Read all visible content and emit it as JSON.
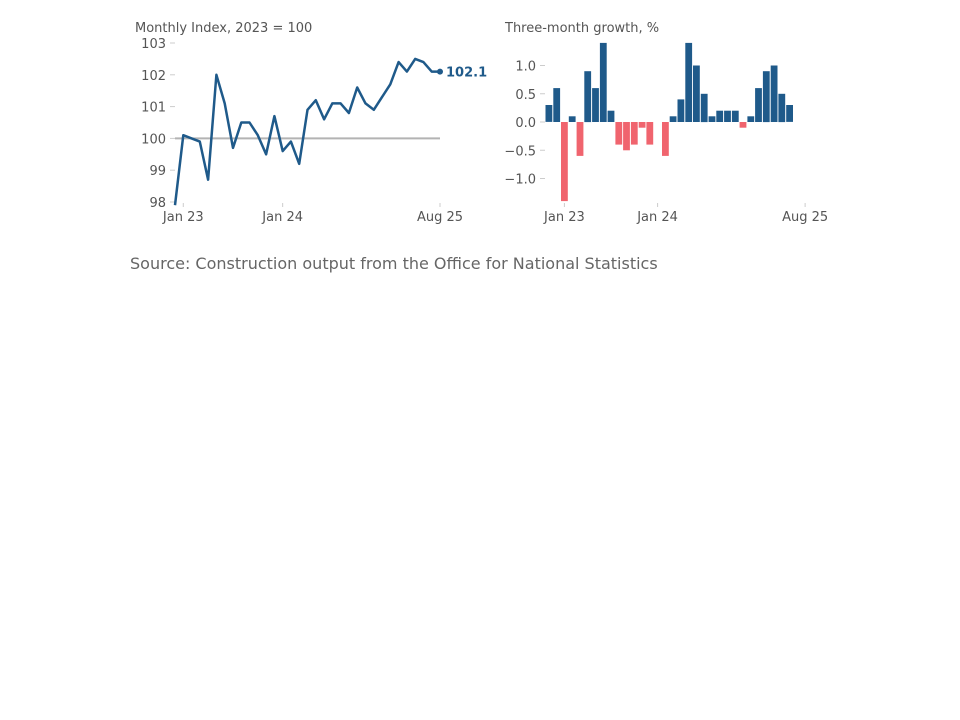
{
  "colors": {
    "line": "#1f5a8a",
    "positive": "#1f5a8a",
    "negative": "#f0646e",
    "baseline": "#b3b3b3",
    "text": "#555555"
  },
  "source": "Source: Construction output from the Office for National Statistics",
  "chart_data": [
    {
      "type": "line",
      "title": "Monthly Index, 2023 = 100",
      "xlabel": "",
      "ylabel": "",
      "ylim": [
        98,
        103
      ],
      "yticks": [
        "98",
        "99",
        "100",
        "101",
        "102",
        "103"
      ],
      "xticks": [
        "Jan 23",
        "Jan 24",
        "Aug 25"
      ],
      "baseline": 100,
      "end_label": "102.1",
      "x": [
        "Dec 22",
        "Jan 23",
        "Feb 23",
        "Mar 23",
        "Apr 23",
        "May 23",
        "Jun 23",
        "Jul 23",
        "Aug 23",
        "Sep 23",
        "Oct 23",
        "Nov 23",
        "Dec 23",
        "Jan 24",
        "Feb 24",
        "Mar 24",
        "Apr 24",
        "May 24",
        "Jun 24",
        "Jul 24",
        "Aug 24",
        "Sep 24",
        "Oct 24",
        "Nov 24",
        "Dec 24",
        "Jan 25",
        "Feb 25",
        "Mar 25",
        "Apr 25",
        "May 25",
        "Jun 25",
        "Jul 25",
        "Aug 25"
      ],
      "values": [
        97.9,
        100.1,
        100.0,
        99.9,
        98.7,
        102.0,
        101.1,
        99.7,
        100.5,
        100.5,
        100.1,
        99.5,
        100.7,
        99.6,
        99.9,
        99.2,
        100.9,
        101.2,
        100.6,
        101.1,
        101.1,
        100.8,
        101.6,
        101.1,
        100.9,
        101.3,
        101.7,
        102.4,
        102.1,
        102.5,
        102.4,
        102.1,
        102.1
      ]
    },
    {
      "type": "bar",
      "title": "Three-month growth, %",
      "xlabel": "",
      "ylabel": "",
      "ylim": [
        -1.4,
        1.4
      ],
      "yticks": [
        "−1.0",
        "−0.5",
        "0.0",
        "0.5",
        "1.0"
      ],
      "xticks": [
        "Jan 23",
        "Jan 24",
        "Aug 25"
      ],
      "categories": [
        "Nov 22",
        "Dec 22",
        "Jan 23",
        "Feb 23",
        "Mar 23",
        "Apr 23",
        "May 23",
        "Jun 23",
        "Jul 23",
        "Aug 23",
        "Sep 23",
        "Oct 23",
        "Nov 23",
        "Dec 23",
        "Jan 24",
        "Feb 24",
        "Mar 24",
        "Apr 24",
        "May 24",
        "Jun 24",
        "Jul 24",
        "Aug 24",
        "Sep 24",
        "Oct 24",
        "Nov 24",
        "Dec 24",
        "Jan 25",
        "Feb 25",
        "Mar 25",
        "Apr 25",
        "May 25",
        "Jun 25",
        "Jul 25",
        "Aug 25"
      ],
      "values": [
        0.3,
        0.6,
        -1.4,
        0.1,
        -0.6,
        0.9,
        0.6,
        1.4,
        0.2,
        -0.4,
        -0.5,
        -0.4,
        -0.1,
        -0.4,
        0.0,
        -0.6,
        0.1,
        0.4,
        1.4,
        1.0,
        0.5,
        0.1,
        0.2,
        0.2,
        0.2,
        -0.1,
        0.1,
        0.6,
        0.9,
        1.0,
        0.5,
        0.3,
        0.0,
        0.0
      ]
    }
  ]
}
